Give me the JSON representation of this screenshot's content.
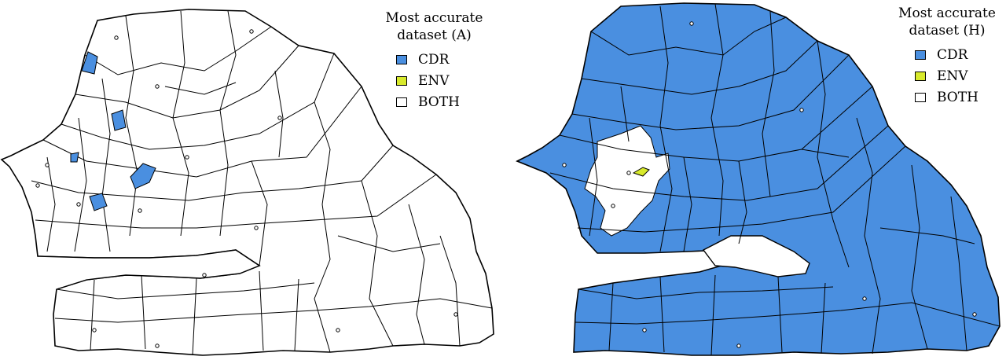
{
  "colors": {
    "cdr": "#4a8fe0",
    "env": "#d8ea2c",
    "both": "#ffffff",
    "border": "#000000"
  },
  "panels": [
    {
      "id": "A",
      "legend": {
        "title_line1": "Most accurate",
        "title_line2": "dataset (A)",
        "items": [
          {
            "label": "CDR",
            "color": "#4a8fe0"
          },
          {
            "label": "ENV",
            "color": "#d8ea2c"
          },
          {
            "label": "BOTH",
            "color": "#ffffff"
          }
        ]
      },
      "base_fill": "both"
    },
    {
      "id": "H",
      "legend": {
        "title_line1": "Most accurate",
        "title_line2": "dataset (H)",
        "items": [
          {
            "label": "CDR",
            "color": "#4a8fe0"
          },
          {
            "label": "ENV",
            "color": "#d8ea2c"
          },
          {
            "label": "BOTH",
            "color": "#ffffff"
          }
        ]
      },
      "base_fill": "cdr"
    }
  ]
}
